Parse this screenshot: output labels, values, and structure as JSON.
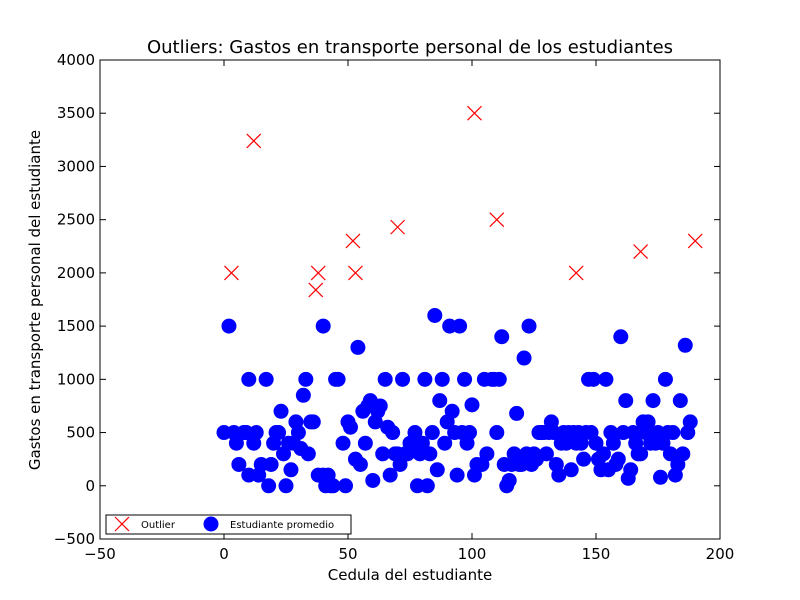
{
  "chart_data": {
    "type": "scatter",
    "title": "Outliers: Gastos en transporte personal de los estudiantes",
    "xlabel": "Cedula del estudiante",
    "ylabel": "Gastos en transporte personal del estudiante",
    "xlim": [
      -50,
      200
    ],
    "ylim": [
      -500,
      4000
    ],
    "xticks": [
      "−50",
      "0",
      "50",
      "100",
      "150",
      "200"
    ],
    "yticks": [
      "−500",
      "0",
      "500",
      "1000",
      "1500",
      "2000",
      "2500",
      "3000",
      "3500",
      "4000"
    ],
    "grid": false,
    "legend_position": "bottom-left",
    "series": [
      {
        "name": "Outlier",
        "marker": "x",
        "color": "#ff0000",
        "points": [
          [
            3,
            2000
          ],
          [
            12,
            3240
          ],
          [
            37,
            1840
          ],
          [
            38,
            2000
          ],
          [
            52,
            2300
          ],
          [
            53,
            2000
          ],
          [
            70,
            2430
          ],
          [
            101,
            3500
          ],
          [
            110,
            2500
          ],
          [
            142,
            2000
          ],
          [
            168,
            2200
          ],
          [
            190,
            2300
          ]
        ]
      },
      {
        "name": "Estudiante promedio",
        "marker": "o",
        "color": "#0000ff",
        "points": [
          [
            0,
            500
          ],
          [
            2,
            1500
          ],
          [
            4,
            500
          ],
          [
            5,
            400
          ],
          [
            6,
            200
          ],
          [
            8,
            500
          ],
          [
            9,
            500
          ],
          [
            10,
            100
          ],
          [
            10,
            1000
          ],
          [
            12,
            400
          ],
          [
            13,
            500
          ],
          [
            14,
            100
          ],
          [
            15,
            200
          ],
          [
            17,
            1000
          ],
          [
            18,
            0
          ],
          [
            19,
            200
          ],
          [
            20,
            400
          ],
          [
            21,
            500
          ],
          [
            22,
            500
          ],
          [
            23,
            700
          ],
          [
            24,
            300
          ],
          [
            25,
            0
          ],
          [
            26,
            400
          ],
          [
            27,
            150
          ],
          [
            28,
            400
          ],
          [
            29,
            600
          ],
          [
            30,
            500
          ],
          [
            31,
            350
          ],
          [
            32,
            850
          ],
          [
            33,
            1000
          ],
          [
            34,
            300
          ],
          [
            35,
            600
          ],
          [
            36,
            600
          ],
          [
            38,
            100
          ],
          [
            40,
            1500
          ],
          [
            40,
            100
          ],
          [
            41,
            0
          ],
          [
            42,
            100
          ],
          [
            43,
            0
          ],
          [
            44,
            0
          ],
          [
            45,
            1000
          ],
          [
            46,
            1000
          ],
          [
            48,
            400
          ],
          [
            49,
            0
          ],
          [
            50,
            600
          ],
          [
            51,
            550
          ],
          [
            53,
            250
          ],
          [
            54,
            1300
          ],
          [
            55,
            200
          ],
          [
            56,
            700
          ],
          [
            57,
            400
          ],
          [
            58,
            750
          ],
          [
            59,
            800
          ],
          [
            60,
            50
          ],
          [
            61,
            600
          ],
          [
            62,
            700
          ],
          [
            63,
            750
          ],
          [
            64,
            300
          ],
          [
            65,
            1000
          ],
          [
            66,
            550
          ],
          [
            67,
            100
          ],
          [
            68,
            500
          ],
          [
            69,
            300
          ],
          [
            70,
            300
          ],
          [
            71,
            200
          ],
          [
            72,
            1000
          ],
          [
            73,
            300
          ],
          [
            74,
            300
          ],
          [
            75,
            400
          ],
          [
            76,
            350
          ],
          [
            77,
            500
          ],
          [
            78,
            0
          ],
          [
            79,
            300
          ],
          [
            80,
            400
          ],
          [
            81,
            1000
          ],
          [
            82,
            0
          ],
          [
            83,
            300
          ],
          [
            84,
            500
          ],
          [
            85,
            1600
          ],
          [
            86,
            150
          ],
          [
            87,
            800
          ],
          [
            88,
            1000
          ],
          [
            89,
            400
          ],
          [
            90,
            600
          ],
          [
            91,
            1500
          ],
          [
            92,
            700
          ],
          [
            93,
            500
          ],
          [
            94,
            100
          ],
          [
            95,
            1500
          ],
          [
            96,
            500
          ],
          [
            97,
            1000
          ],
          [
            98,
            400
          ],
          [
            99,
            500
          ],
          [
            100,
            760
          ],
          [
            101,
            100
          ],
          [
            102,
            200
          ],
          [
            104,
            200
          ],
          [
            105,
            1000
          ],
          [
            106,
            300
          ],
          [
            108,
            1000
          ],
          [
            109,
            1000
          ],
          [
            110,
            500
          ],
          [
            111,
            1000
          ],
          [
            112,
            1400
          ],
          [
            113,
            200
          ],
          [
            114,
            0
          ],
          [
            115,
            50
          ],
          [
            116,
            200
          ],
          [
            117,
            300
          ],
          [
            118,
            680
          ],
          [
            119,
            200
          ],
          [
            120,
            200
          ],
          [
            121,
            1200
          ],
          [
            122,
            300
          ],
          [
            123,
            1500
          ],
          [
            124,
            200
          ],
          [
            125,
            300
          ],
          [
            126,
            250
          ],
          [
            127,
            500
          ],
          [
            128,
            500
          ],
          [
            129,
            500
          ],
          [
            130,
            300
          ],
          [
            131,
            500
          ],
          [
            132,
            600
          ],
          [
            133,
            500
          ],
          [
            134,
            200
          ],
          [
            135,
            100
          ],
          [
            136,
            400
          ],
          [
            137,
            500
          ],
          [
            138,
            400
          ],
          [
            139,
            500
          ],
          [
            140,
            150
          ],
          [
            141,
            500
          ],
          [
            142,
            400
          ],
          [
            143,
            500
          ],
          [
            144,
            400
          ],
          [
            145,
            250
          ],
          [
            146,
            500
          ],
          [
            147,
            1000
          ],
          [
            148,
            500
          ],
          [
            149,
            1000
          ],
          [
            150,
            400
          ],
          [
            151,
            250
          ],
          [
            152,
            150
          ],
          [
            153,
            300
          ],
          [
            154,
            1000
          ],
          [
            155,
            150
          ],
          [
            156,
            500
          ],
          [
            157,
            400
          ],
          [
            158,
            200
          ],
          [
            159,
            250
          ],
          [
            160,
            1400
          ],
          [
            161,
            500
          ],
          [
            162,
            800
          ],
          [
            163,
            70
          ],
          [
            164,
            150
          ],
          [
            165,
            500
          ],
          [
            166,
            400
          ],
          [
            167,
            300
          ],
          [
            168,
            300
          ],
          [
            169,
            600
          ],
          [
            170,
            500
          ],
          [
            171,
            600
          ],
          [
            172,
            400
          ],
          [
            173,
            800
          ],
          [
            174,
            400
          ],
          [
            175,
            500
          ],
          [
            176,
            80
          ],
          [
            177,
            400
          ],
          [
            178,
            1000
          ],
          [
            179,
            500
          ],
          [
            180,
            300
          ],
          [
            181,
            500
          ],
          [
            182,
            100
          ],
          [
            183,
            200
          ],
          [
            184,
            800
          ],
          [
            185,
            300
          ],
          [
            186,
            1320
          ],
          [
            187,
            500
          ],
          [
            188,
            600
          ]
        ]
      }
    ]
  }
}
